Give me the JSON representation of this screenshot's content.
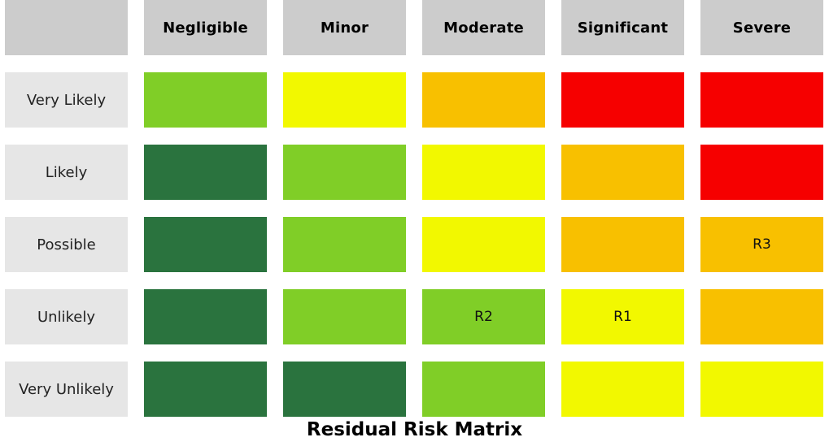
{
  "title": "Residual Risk Matrix",
  "colors": {
    "dark_green": "#2a733e",
    "green": "#80ce27",
    "yellow": "#f2f800",
    "orange": "#f8c000",
    "red": "#f60000",
    "header_bg": "#cccccc",
    "row_header_bg": "#e6e6e6"
  },
  "impact_levels": [
    "Negligible",
    "Minor",
    "Moderate",
    "Significant",
    "Severe"
  ],
  "likelihood_levels": [
    "Very Likely",
    "Likely",
    "Possible",
    "Unlikely",
    "Very Unlikely"
  ],
  "grid": [
    [
      "green",
      "yellow",
      "orange",
      "red",
      "red"
    ],
    [
      "dark_green",
      "green",
      "yellow",
      "orange",
      "red"
    ],
    [
      "dark_green",
      "green",
      "yellow",
      "orange",
      "orange"
    ],
    [
      "dark_green",
      "green",
      "green",
      "yellow",
      "orange"
    ],
    [
      "dark_green",
      "dark_green",
      "green",
      "yellow",
      "yellow"
    ]
  ],
  "risks": [
    {
      "label": "R3",
      "likelihood": "Possible",
      "impact": "Severe"
    },
    {
      "label": "R2",
      "likelihood": "Unlikely",
      "impact": "Moderate"
    },
    {
      "label": "R1",
      "likelihood": "Unlikely",
      "impact": "Significant"
    }
  ]
}
